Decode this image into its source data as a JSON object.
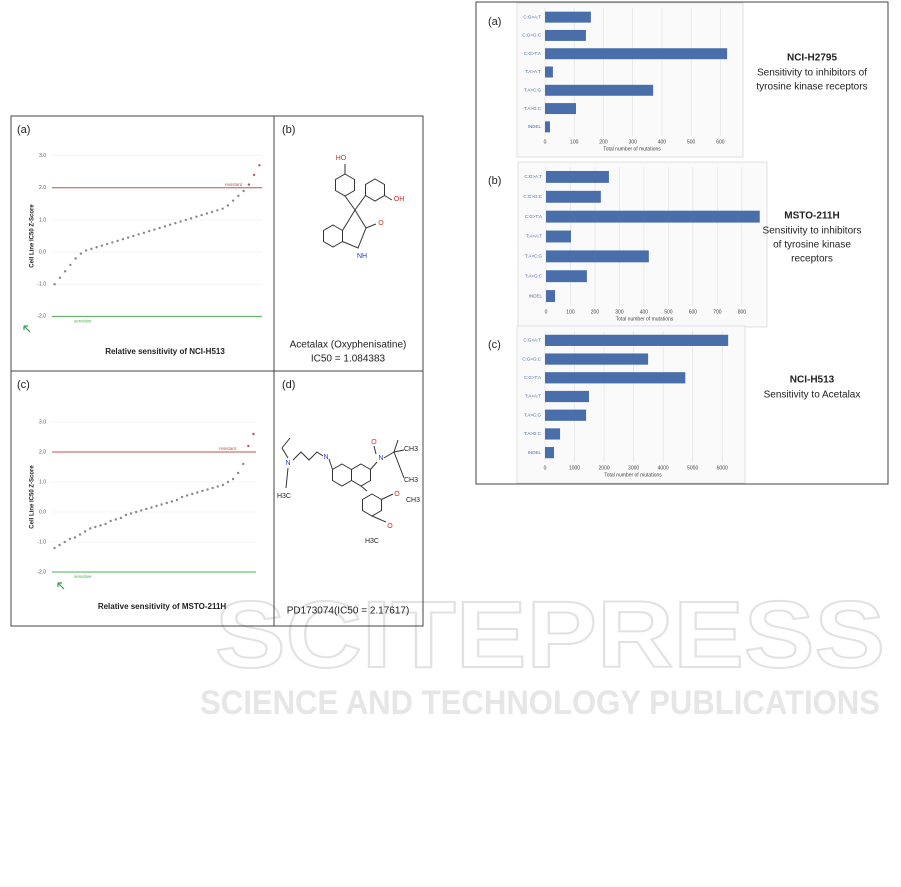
{
  "chart_data": [
    {
      "type": "scatter",
      "label": "(a)",
      "ylabel": "Cell Line IC50 Z-Score",
      "xlabel": "Relative sensitivity of NCI-H513",
      "ylim": [
        -2.3,
        3.3
      ],
      "yticks": [
        {
          "value": 3,
          "label": "3.0"
        },
        {
          "value": 2,
          "label": "2.0"
        },
        {
          "value": 1,
          "label": "1.0"
        },
        {
          "value": 0,
          "label": "0.0"
        },
        {
          "value": -1,
          "label": "-1.0"
        },
        {
          "value": -2,
          "label": "-2.0"
        }
      ],
      "thresholds": [
        {
          "value": 2,
          "label": "resistant",
          "color": "#c0504d"
        },
        {
          "value": -2,
          "label": "sensitive",
          "color": "#4caf50"
        }
      ],
      "color": "#888888",
      "values": [
        -1.0,
        -0.8,
        -0.6,
        -0.4,
        -0.2,
        -0.05,
        0.05,
        0.1,
        0.15,
        0.2,
        0.25,
        0.3,
        0.35,
        0.4,
        0.45,
        0.5,
        0.55,
        0.6,
        0.65,
        0.7,
        0.75,
        0.8,
        0.85,
        0.9,
        0.95,
        1.0,
        1.05,
        1.1,
        1.15,
        1.2,
        1.25,
        1.3,
        1.35,
        1.45,
        1.6,
        1.75,
        1.9,
        2.1,
        2.4,
        2.7
      ]
    },
    {
      "type": "scatter",
      "label": "(c)",
      "ylabel": "Cell Line IC50 Z-Score",
      "xlabel": "Relative sensitivity of MSTO-211H",
      "ylim": [
        -2.3,
        3.3
      ],
      "yticks": [
        {
          "value": 3,
          "label": "3.0"
        },
        {
          "value": 2,
          "label": "2.0"
        },
        {
          "value": 1,
          "label": "1.0"
        },
        {
          "value": 0,
          "label": "0.0"
        },
        {
          "value": -1,
          "label": "-1.0"
        },
        {
          "value": -2,
          "label": "-2.0"
        }
      ],
      "thresholds": [
        {
          "value": 2,
          "label": "resistant",
          "color": "#c0504d"
        },
        {
          "value": -2,
          "label": "sensitive",
          "color": "#4caf50"
        }
      ],
      "color": "#888888",
      "values": [
        -1.2,
        -1.1,
        -1.0,
        -0.9,
        -0.85,
        -0.75,
        -0.65,
        -0.55,
        -0.5,
        -0.45,
        -0.4,
        -0.3,
        -0.25,
        -0.2,
        -0.1,
        -0.05,
        0.0,
        0.05,
        0.1,
        0.15,
        0.2,
        0.25,
        0.3,
        0.35,
        0.4,
        0.5,
        0.55,
        0.6,
        0.65,
        0.7,
        0.75,
        0.8,
        0.85,
        0.9,
        1.0,
        1.1,
        1.3,
        1.6,
        2.2,
        2.6
      ]
    },
    {
      "type": "hbar",
      "label": "(a)",
      "title": "NCI-H2795",
      "subtitle": [
        "Sensitivity to inhibitors of",
        "tyrosine kinase receptors"
      ],
      "xlabel": "Total number of mutations",
      "categories": [
        "C:G>A:T",
        "C:G>G:C",
        "C:G>T:A",
        "T:A>A:T",
        "T:A>C:G",
        "T:A>G:C",
        "INDEL"
      ],
      "values": [
        157,
        140,
        623,
        27,
        370,
        106,
        17
      ],
      "color": "#4a6ea9",
      "xlim": [
        0,
        650
      ],
      "xticks": [
        0,
        100,
        200,
        300,
        400,
        500,
        600
      ]
    },
    {
      "type": "hbar",
      "label": "(b)",
      "title": "MSTO-211H",
      "subtitle": [
        "Sensitivity to inhibitors",
        "of tyrosine kinase",
        "receptors"
      ],
      "xlabel": "Total number of mutations",
      "categories": [
        "C:G>A:T",
        "C:G>G:C",
        "C:G>T:A",
        "T:A>A:T",
        "T:A>C:G",
        "T:A>G:C",
        "INDEL"
      ],
      "values": [
        257,
        224,
        873,
        102,
        420,
        167,
        37
      ],
      "color": "#4a6ea9",
      "xlim": [
        0,
        870
      ],
      "xticks": [
        0,
        100,
        200,
        300,
        400,
        500,
        600,
        700,
        800
      ]
    },
    {
      "type": "hbar",
      "label": "(c)",
      "title": "NCI-H513",
      "subtitle": [
        "Sensitivity to Acetalax"
      ],
      "xlabel": "Total number of mutations",
      "categories": [
        "C:G>A:T",
        "C:G>G:C",
        "C:G>T:A",
        "T:A>A:T",
        "T:A>C:G",
        "T:A>G:C",
        "INDEL"
      ],
      "values": [
        6200,
        3490,
        4750,
        1490,
        1390,
        510,
        305
      ],
      "color": "#4a6ea9",
      "xlim": [
        0,
        6500
      ],
      "xticks": [
        0,
        1000,
        2000,
        3000,
        4000,
        5000,
        6000
      ]
    }
  ],
  "molecules": [
    {
      "label": "(b)",
      "atoms": [
        "HO",
        "OH",
        "O",
        "NH"
      ],
      "caption": [
        "Acetalax (Oxyphenisatine)",
        "IC50 = 1.084383"
      ]
    },
    {
      "label": "(d)",
      "atoms": [
        "N",
        "H3C",
        "N",
        "N",
        "O",
        "CH3",
        "CH3",
        "O",
        "CH3",
        "O",
        "H3C"
      ],
      "caption": [
        "PD173074(IC50 = 2.17617)"
      ]
    }
  ],
  "watermark": [
    "SCITEPRESS",
    "SCIENCE AND TECHNOLOGY PUBLICATIONS"
  ]
}
